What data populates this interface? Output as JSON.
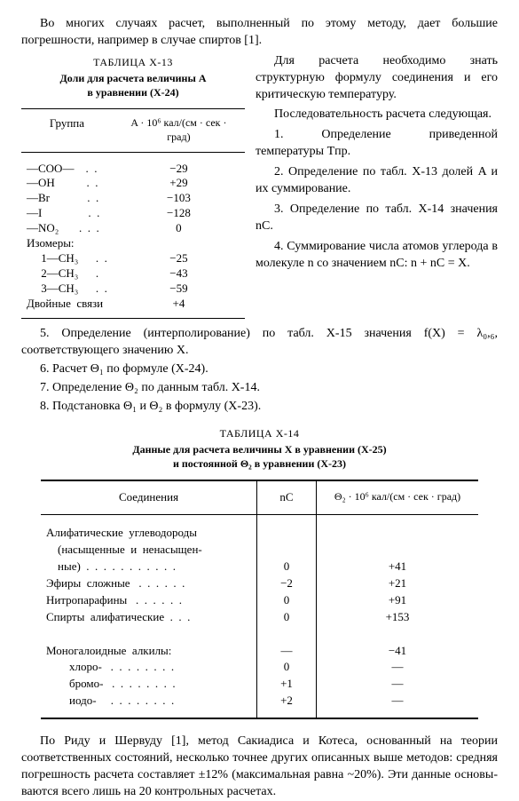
{
  "intro_para": "Во многих случаях расчет, выполненный по этому методу, дает боль­шие погрешности, например в случае спиртов [1].",
  "right_para": "Для расчета необходимо знать структурную формулу соединения и его критическую температуру.",
  "seq_intro": "Последовательность расче­та следующая.",
  "right_step1": "1. Определение приведен­ной температуры Tпр.",
  "right_step2": "2. Определение по табл. X-13 долей A и их суммирова­ние.",
  "right_step3": "3. Определение по табл. X-14 значения nC.",
  "right_step4": "4. Суммирование числа ато­мов углерода в молекуле n со значением nC:  n + nC = X.",
  "table13": {
    "label": "ТАБЛИЦА X-13",
    "title1": "Доли для расчета величины A",
    "title2": "в уравнении (X-24)",
    "col1": "Группа",
    "col2": "A · 10⁶ кал/(см · сек · град)",
    "rows": [
      {
        "g": "—COO—    .  .",
        "v": "−29"
      },
      {
        "g": "—OH           .  .",
        "v": "+29"
      },
      {
        "g": "—Br             .  .",
        "v": "−103"
      },
      {
        "g": "—I                .  .",
        "v": "−128"
      },
      {
        "g": "—NO₂       .  .  .",
        "v": "0"
      },
      {
        "g": "Изомеры:",
        "v": ""
      },
      {
        "g": "     1—CH₃      .  .",
        "v": "−25"
      },
      {
        "g": "     2—CH₃      .",
        "v": "−43"
      },
      {
        "g": "     3—CH₃      .  .",
        "v": "−59"
      },
      {
        "g": "Двойные  связи",
        "v": "+4"
      }
    ]
  },
  "step5": "5. Определение (интерполирование) по табл. X-15 значения f(X) = λ₀,₆, соответствующего значению X.",
  "step6": "6. Расчет Θ₁ по формуле (X-24).",
  "step7": "7. Определение Θ₂ по данным табл. X-14.",
  "step8": "8. Подстановка Θ₁ и Θ₂ в формулу (X-23).",
  "table14": {
    "label": "ТАБЛИЦА X-14",
    "title1": "Данные для расчета величины X в уравнении (X-25)",
    "title2": "и постоянной Θ₂ в уравнении (X-23)",
    "col1": "Соединения",
    "col2": "nC",
    "col3": "Θ₂ · 10⁶ кал/(см · сек · град)",
    "rows": [
      {
        "n": "Алифатические  углеводороды",
        "c2": "",
        "c3": ""
      },
      {
        "n": "    (насыщенные  и  ненасыщен-",
        "c2": "",
        "c3": ""
      },
      {
        "n": "    ные)  .  .  .  .  .  .  .  .  .  .  .",
        "c2": "0",
        "c3": "+41"
      },
      {
        "n": "Эфиры  сложные   .  .  .  .  .  .",
        "c2": "−2",
        "c3": "+21"
      },
      {
        "n": "Нитропарафины   .  .  .  .  .  .",
        "c2": "0",
        "c3": "+91"
      },
      {
        "n": "Спирты  алифатические  .  .  .",
        "c2": "0",
        "c3": "+153"
      },
      {
        "n": " ",
        "c2": "",
        "c3": ""
      },
      {
        "n": "Моногалоидные  алкилы:",
        "c2": "—",
        "c3": "−41"
      },
      {
        "n": "        хлоро-   .  .  .  .  .  .  .  .",
        "c2": "0",
        "c3": "—"
      },
      {
        "n": "        бромо-   .  .  .  .  .  .  .  .",
        "c2": "+1",
        "c3": "—"
      },
      {
        "n": "        иодо-     .  .  .  .  .  .  .  .",
        "c2": "+2",
        "c3": "—"
      }
    ]
  },
  "final_para": "По Риду и Шервуду [1], метод Сакиадиса и Котеса, основанный на теории соответственных состояний, несколько точнее других описанных выше методов: средняя погрешность расчета состав­ляет ±12% (максимальная равна ~20%). Эти данные основы­ваются всего лишь на 20 контрольных расчетах."
}
